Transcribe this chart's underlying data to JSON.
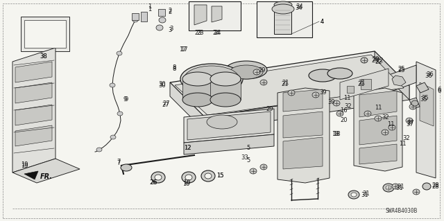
{
  "background_color": "#f5f5f0",
  "line_color": "#1a1a1a",
  "diagram_code": "SWA4B4030B",
  "figsize": [
    6.4,
    3.19
  ],
  "dpi": 100
}
